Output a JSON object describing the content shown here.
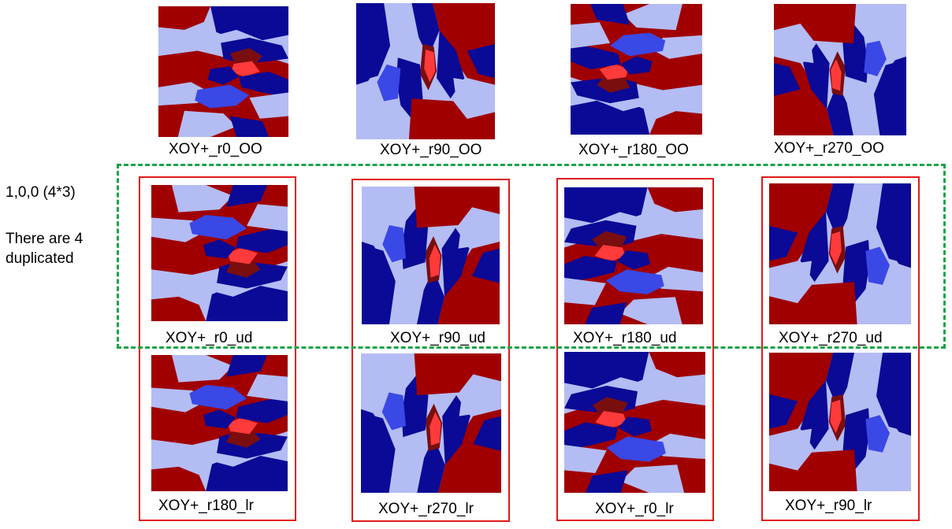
{
  "colors": {
    "dark_red": "#a00000",
    "bright_red": "#ff3a3a",
    "maroon": "#7a0e0e",
    "dark_blue": "#0a0a96",
    "mid_blue": "#3a48e6",
    "light_blue": "#b4bcf4",
    "box_red": "#e01a1a",
    "box_green": "#1aa34a"
  },
  "annotation": {
    "line1": "1,0,0 (4*3)",
    "line2": "There are 4",
    "line3": "duplicated"
  },
  "rows": {
    "original": [
      "XOY+_r0_OO",
      "XOY+_r90_OO",
      "XOY+_r180_OO",
      "XOY+_r270_OO"
    ],
    "ud": [
      "XOY+_r0_ud",
      "XOY+_r90_ud",
      "XOY+_r180_ud",
      "XOY+_r270_ud"
    ],
    "lr": [
      "XOY+_r180_lr",
      "XOY+_r270_lr",
      "XOY+_r0_lr",
      "XOY+_r90_lr"
    ]
  }
}
